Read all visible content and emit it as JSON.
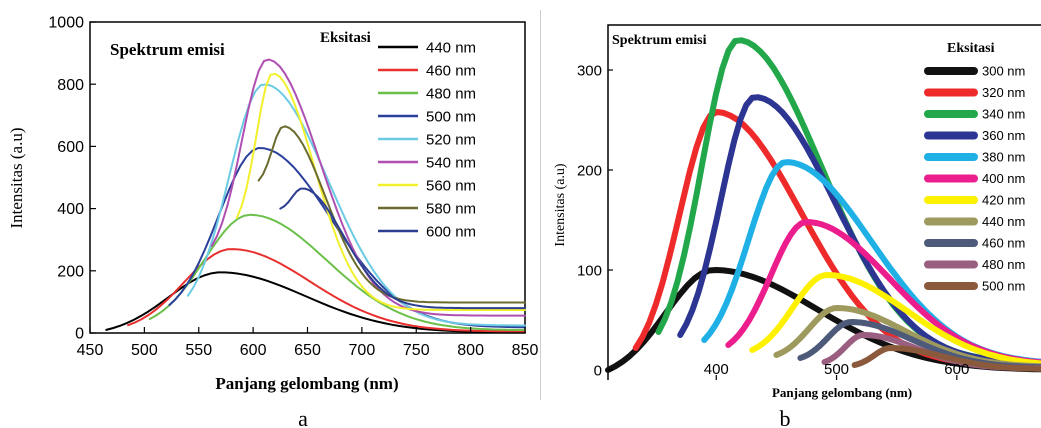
{
  "chart_data": [
    {
      "type": "line",
      "panel_label": "a",
      "title": "Spektrum emisi",
      "legend_title": "Eksitasi",
      "xlabel": "Panjang gelombang (nm)",
      "ylabel": "Intensitas (a.u)",
      "xlim": [
        450,
        850
      ],
      "ylim": [
        0,
        1000
      ],
      "x_ticks": [
        450,
        500,
        550,
        600,
        650,
        700,
        750,
        800,
        850
      ],
      "y_ticks": [
        0,
        200,
        400,
        600,
        800,
        1000
      ],
      "grid": false,
      "legend_position": "top-right",
      "series": [
        {
          "name": "440 nm",
          "color": "#000000",
          "peak_x": 570,
          "peak_y": 195,
          "start_x": 465,
          "start_y": 10
        },
        {
          "name": "460 nm",
          "color": "#e8302e",
          "peak_x": 580,
          "peak_y": 270,
          "start_x": 485,
          "start_y": 25
        },
        {
          "name": "480 nm",
          "color": "#6cc04a",
          "peak_x": 597,
          "peak_y": 380,
          "start_x": 505,
          "start_y": 45
        },
        {
          "name": "500 nm",
          "color": "#2a3f9a",
          "peak_x": 606,
          "peak_y": 595,
          "start_x": 523,
          "start_y": 90
        },
        {
          "name": "520 nm",
          "color": "#6ccbe3",
          "peak_x": 610,
          "peak_y": 800,
          "start_x": 540,
          "start_y": 120
        },
        {
          "name": "540 nm",
          "color": "#b04fb2",
          "peak_x": 613,
          "peak_y": 880,
          "start_x": 562,
          "start_y": 280
        },
        {
          "name": "560 nm",
          "color": "#f2ef2b",
          "peak_x": 618,
          "peak_y": 835,
          "start_x": 585,
          "start_y": 370
        },
        {
          "name": "580 nm",
          "color": "#6b6b2f",
          "peak_x": 628,
          "peak_y": 665,
          "start_x": 605,
          "start_y": 490
        },
        {
          "name": "600 nm",
          "color": "#2c3e8f",
          "peak_x": 645,
          "peak_y": 465,
          "start_x": 625,
          "start_y": 400
        }
      ]
    },
    {
      "type": "line",
      "panel_label": "b",
      "title": "Spektrum emisi",
      "legend_title": "Eksitasi",
      "xlabel": "Panjang gelombang (nm)",
      "ylabel": "Intensitas (a.u)",
      "xlim": [
        310,
        670
      ],
      "ylim": [
        -10,
        345
      ],
      "x_ticks": [
        400,
        500,
        600
      ],
      "y_ticks": [
        0,
        100,
        200,
        300
      ],
      "grid": false,
      "legend_position": "top-right",
      "series": [
        {
          "name": "300 nm",
          "color": "#111111",
          "peak_x": 398,
          "peak_y": 100,
          "start_x": 310,
          "start_y": 0
        },
        {
          "name": "320 nm",
          "color": "#ee2a2a",
          "peak_x": 400,
          "peak_y": 258,
          "start_x": 333,
          "start_y": 22
        },
        {
          "name": "340 nm",
          "color": "#22a84a",
          "peak_x": 418,
          "peak_y": 330,
          "start_x": 352,
          "start_y": 38
        },
        {
          "name": "360 nm",
          "color": "#2d3592",
          "peak_x": 432,
          "peak_y": 273,
          "start_x": 370,
          "start_y": 35
        },
        {
          "name": "380 nm",
          "color": "#1fb0e6",
          "peak_x": 458,
          "peak_y": 208,
          "start_x": 390,
          "start_y": 30
        },
        {
          "name": "400 nm",
          "color": "#ec1d8c",
          "peak_x": 475,
          "peak_y": 148,
          "start_x": 410,
          "start_y": 25
        },
        {
          "name": "420 nm",
          "color": "#fdf100",
          "peak_x": 492,
          "peak_y": 95,
          "start_x": 430,
          "start_y": 20
        },
        {
          "name": "440 nm",
          "color": "#9e9a5e",
          "peak_x": 500,
          "peak_y": 62,
          "start_x": 450,
          "start_y": 15
        },
        {
          "name": "460 nm",
          "color": "#4e5a7a",
          "peak_x": 512,
          "peak_y": 48,
          "start_x": 470,
          "start_y": 12
        },
        {
          "name": "480 nm",
          "color": "#9a5e80",
          "peak_x": 522,
          "peak_y": 35,
          "start_x": 490,
          "start_y": 8
        },
        {
          "name": "500 nm",
          "color": "#8b5a3c",
          "peak_x": 545,
          "peak_y": 22,
          "start_x": 515,
          "start_y": 5
        }
      ]
    }
  ]
}
